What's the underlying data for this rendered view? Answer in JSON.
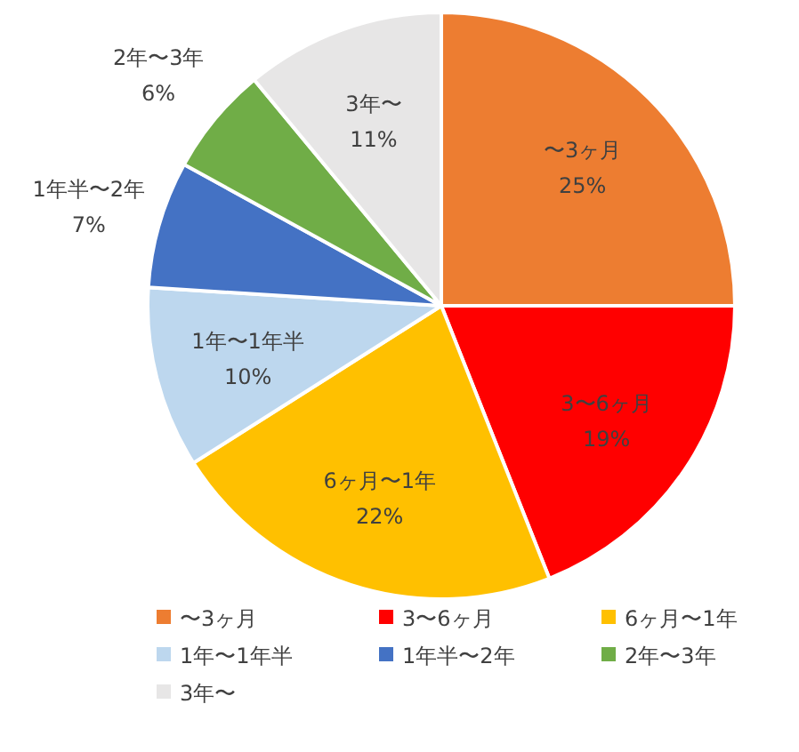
{
  "chart_data": {
    "type": "pie",
    "categories": [
      "〜3ヶ月",
      "3〜6ヶ月",
      "6ヶ月〜1年",
      "1年〜1年半",
      "1年半〜2年",
      "2年〜3年",
      "3年〜"
    ],
    "values": [
      25,
      19,
      22,
      10,
      7,
      6,
      11
    ],
    "value_labels": [
      "25%",
      "19%",
      "22%",
      "10%",
      "7%",
      "6%",
      "11%"
    ],
    "colors": [
      "#ed7d31",
      "#ff0000",
      "#ffc000",
      "#bdd7ee",
      "#4472c4",
      "#70ad47",
      "#e7e6e6"
    ],
    "legend": "bottom"
  }
}
